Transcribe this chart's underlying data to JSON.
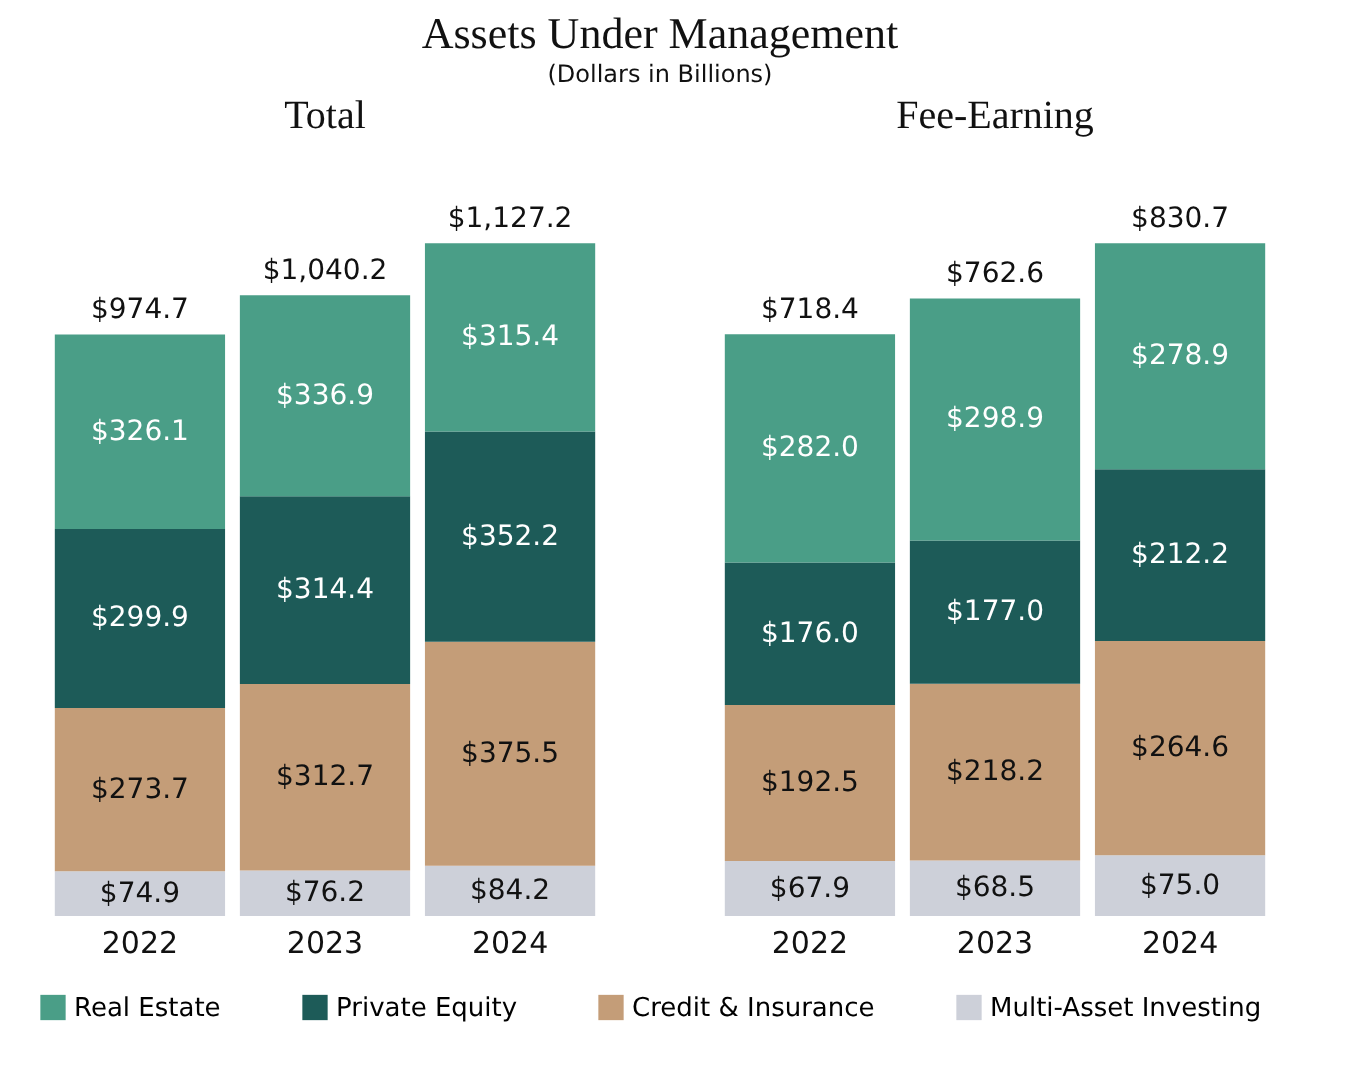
{
  "chart_data": [
    {
      "type": "bar",
      "stacked": true,
      "title": "Total",
      "annotations": [
        "Assets Under Management",
        "(Dollars in Billions)"
      ],
      "legend": "bottom",
      "tick_labels": "x",
      "categories": [
        "2022",
        "2023",
        "2024"
      ],
      "series": [
        {
          "name": "Multi-Asset Investing",
          "color": "#cdd0d9",
          "values": [
            74.9,
            76.2,
            84.2
          ],
          "value_labels": [
            "$74.9",
            "$76.2",
            "$84.2"
          ]
        },
        {
          "name": "Credit & Insurance",
          "color": "#c49d78",
          "values": [
            273.7,
            312.7,
            375.5
          ],
          "value_labels": [
            "$273.7",
            "$312.7",
            "$375.5"
          ]
        },
        {
          "name": "Private Equity",
          "color": "#1d5b58",
          "values": [
            299.9,
            314.4,
            352.2
          ],
          "value_labels": [
            "$299.9",
            "$314.4",
            "$352.2"
          ]
        },
        {
          "name": "Real Estate",
          "color": "#4a9e87",
          "values": [
            326.1,
            336.9,
            315.4
          ],
          "value_labels": [
            "$326.1",
            "$336.9",
            "$315.4"
          ]
        }
      ],
      "totals": [
        "$974.7",
        "$1,040.2",
        "$1,127.2"
      ]
    },
    {
      "type": "bar",
      "stacked": true,
      "title": "Fee-Earning",
      "tick_labels": "x",
      "categories": [
        "2022",
        "2023",
        "2024"
      ],
      "series": [
        {
          "name": "Multi-Asset Investing",
          "color": "#cdd0d9",
          "values": [
            67.9,
            68.5,
            75.0
          ],
          "value_labels": [
            "$67.9",
            "$68.5",
            "$75.0"
          ]
        },
        {
          "name": "Credit & Insurance",
          "color": "#c49d78",
          "values": [
            192.5,
            218.2,
            264.6
          ],
          "value_labels": [
            "$192.5",
            "$218.2",
            "$264.6"
          ]
        },
        {
          "name": "Private Equity",
          "color": "#1d5b58",
          "values": [
            176.0,
            177.0,
            212.2
          ],
          "value_labels": [
            "$176.0",
            "$177.0",
            "$212.2"
          ]
        },
        {
          "name": "Real Estate",
          "color": "#4a9e87",
          "values": [
            282.0,
            298.9,
            278.9
          ],
          "value_labels": [
            "$282.0",
            "$298.9",
            "$278.9"
          ]
        }
      ],
      "totals": [
        "$718.4",
        "$762.6",
        "$830.7"
      ]
    }
  ]
}
